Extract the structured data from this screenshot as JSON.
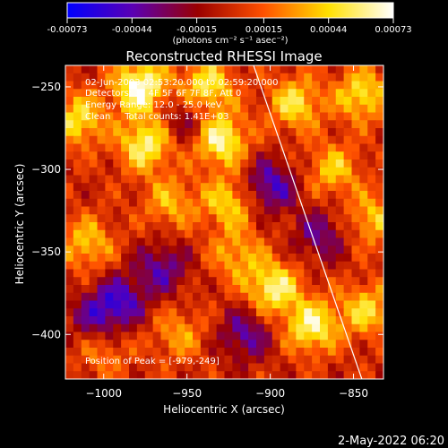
{
  "footer_date": "2-May-2022 06:20",
  "colorbar": {
    "tick_labels": [
      "-0.00073",
      "-0.00044",
      "-0.00015",
      "0.00015",
      "0.00044",
      "0.00073"
    ],
    "tick_values": [
      -0.00073,
      -0.00044,
      -0.00015,
      0.00015,
      0.00044,
      0.00073
    ],
    "range": [
      -0.00073,
      0.00073
    ],
    "unit_label": "(photons cm⁻² s⁻¹ asec⁻²)",
    "colormap": [
      "#0000ff",
      "#5a00b4",
      "#9a0000",
      "#ff5000",
      "#ffe000",
      "#ffffff"
    ]
  },
  "chart_data": {
    "type": "heatmap",
    "title": "Reconstructed RHESSI Image",
    "xlabel": "Heliocentric X (arcsec)",
    "ylabel": "Heliocentric Y (arcsec)",
    "xlim": [
      -1023,
      -832
    ],
    "ylim": [
      -427,
      -237
    ],
    "xticks": [
      -1000,
      -950,
      -900,
      -850
    ],
    "yticks": [
      -250,
      -300,
      -350,
      -400
    ],
    "xtick_labels": [
      "−1000",
      "−950",
      "−900",
      "−850"
    ],
    "ytick_labels": [
      "−250",
      "−300",
      "−350",
      "−400"
    ],
    "info_lines": [
      "02-Jun-2003 02:53:20.000 to 02:59:20.000",
      "Detectors: 3F 4F 5F 6F 7F 8F, Att 0",
      "Energy Range: 12.0 - 25.0 keV",
      "Clean     Total counts: 1.41E+03"
    ],
    "peak_label": "Position of Peak = [-979,-249]",
    "peak": [
      -979,
      -249
    ],
    "limb_line": {
      "x": [
        -910,
        -845
      ],
      "y": [
        -237,
        -427
      ]
    },
    "grid": false,
    "hotspots": [
      {
        "x": -1015,
        "y": -270,
        "v": 0.0005
      },
      {
        "x": -1010,
        "y": -345,
        "v": 0.0004
      },
      {
        "x": -978,
        "y": -250,
        "v": 0.00073
      },
      {
        "x": -975,
        "y": -285,
        "v": 0.0006
      },
      {
        "x": -960,
        "y": -320,
        "v": 0.00035
      },
      {
        "x": -938,
        "y": -250,
        "v": 0.00055
      },
      {
        "x": -930,
        "y": -282,
        "v": 0.00065
      },
      {
        "x": -925,
        "y": -320,
        "v": 0.00045
      },
      {
        "x": -920,
        "y": -352,
        "v": 0.00035
      },
      {
        "x": -898,
        "y": -372,
        "v": 0.0006
      },
      {
        "x": -875,
        "y": -395,
        "v": 0.0006
      },
      {
        "x": -885,
        "y": -260,
        "v": 0.0005
      },
      {
        "x": -862,
        "y": -300,
        "v": 0.0004
      },
      {
        "x": -845,
        "y": -255,
        "v": 0.0005
      },
      {
        "x": -838,
        "y": -330,
        "v": 0.0004
      },
      {
        "x": -842,
        "y": -385,
        "v": 0.00045
      },
      {
        "x": -1000,
        "y": -410,
        "v": 0.00025
      },
      {
        "x": -955,
        "y": -400,
        "v": 0.0003
      }
    ],
    "coldspots": [
      {
        "x": -900,
        "y": -310,
        "v": -0.0005
      },
      {
        "x": -990,
        "y": -380,
        "v": -0.00045
      },
      {
        "x": -965,
        "y": -360,
        "v": -0.0004
      },
      {
        "x": -1005,
        "y": -390,
        "v": -0.00035
      },
      {
        "x": -915,
        "y": -400,
        "v": -0.0004
      },
      {
        "x": -870,
        "y": -340,
        "v": -0.00035
      },
      {
        "x": -950,
        "y": -270,
        "v": -0.0003
      }
    ]
  }
}
